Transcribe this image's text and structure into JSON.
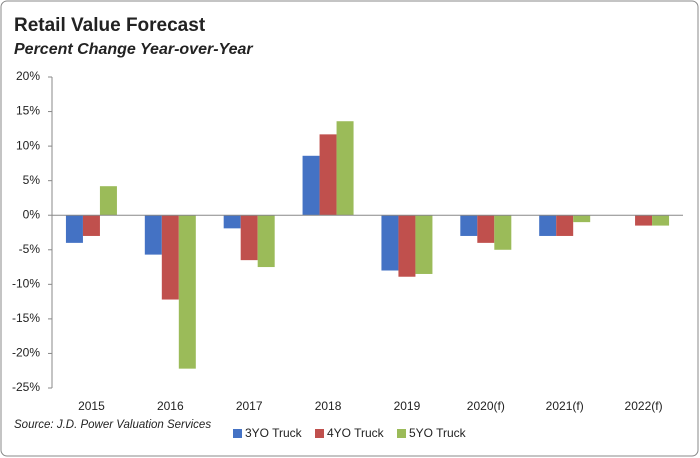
{
  "chart_data": {
    "type": "bar",
    "title": "Retail Value Forecast",
    "subtitle": "Percent Change Year-over-Year",
    "source": "Source: J.D. Power Valuation Services",
    "categories": [
      "2015",
      "2016",
      "2017",
      "2018",
      "2019",
      "2020(f)",
      "2021(f)",
      "2022(f)"
    ],
    "series": [
      {
        "name": "3YO Truck",
        "color": "#4472c4",
        "values": [
          -4,
          -5.7,
          -1.9,
          8.6,
          -8,
          -3,
          -3,
          0
        ]
      },
      {
        "name": "4YO Truck",
        "color": "#c0504d",
        "values": [
          -3,
          -12.2,
          -6.5,
          11.7,
          -8.9,
          -4,
          -3,
          -1.5
        ]
      },
      {
        "name": "5YO Truck",
        "color": "#9bbb59",
        "values": [
          4.2,
          -22.2,
          -7.5,
          13.6,
          -8.5,
          -5,
          -1,
          -1.5
        ]
      }
    ],
    "ylim": [
      -25,
      20
    ],
    "yticks": [
      {
        "value": -25,
        "label": "-25%"
      },
      {
        "value": -20,
        "label": "-20%"
      },
      {
        "value": -15,
        "label": "-15%"
      },
      {
        "value": -10,
        "label": "-10%"
      },
      {
        "value": -5,
        "label": "-5%"
      },
      {
        "value": 0,
        "label": "0%"
      },
      {
        "value": 5,
        "label": "5%"
      },
      {
        "value": 10,
        "label": "10%"
      },
      {
        "value": 15,
        "label": "15%"
      },
      {
        "value": 20,
        "label": "20%"
      }
    ],
    "grid": false
  }
}
